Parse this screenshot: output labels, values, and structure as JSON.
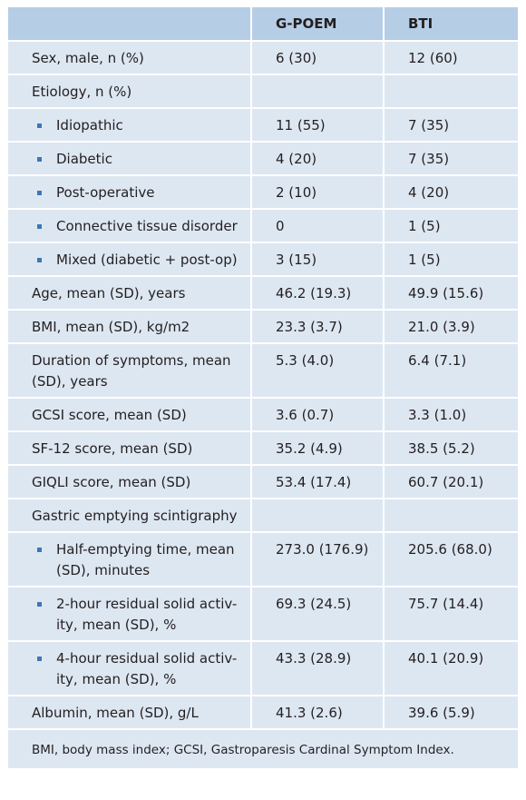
{
  "header": {
    "col1": "",
    "col2": "G-POEM",
    "col3": "BTI"
  },
  "rows": [
    {
      "label": "Sex, male, n (%)",
      "g": "6 (30)",
      "b": "12 (60)",
      "sub": false
    },
    {
      "label": "Etiology, n (%)",
      "g": "",
      "b": "",
      "sub": false
    },
    {
      "label": "Idiopathic",
      "g": "11 (55)",
      "b": "7 (35)",
      "sub": true
    },
    {
      "label": "Diabetic",
      "g": "4 (20)",
      "b": "7 (35)",
      "sub": true
    },
    {
      "label": "Post-operative",
      "g": "2 (10)",
      "b": "4 (20)",
      "sub": true
    },
    {
      "label": "Connective tissue disorder",
      "g": "0",
      "b": "1 (5)",
      "sub": true
    },
    {
      "label": "Mixed (diabetic + post-op)",
      "g": "3 (15)",
      "b": "1 (5)",
      "sub": true
    },
    {
      "label": "Age, mean (SD), years",
      "g": "46.2 (19.3)",
      "b": "49.9 (15.6)",
      "sub": false
    },
    {
      "label": "BMI, mean (SD), kg/m2",
      "g": "23.3 (3.7)",
      "b": "21.0 (3.9)",
      "sub": false
    },
    {
      "label": "Duration of symptoms, mean (SD), years",
      "g": "5.3 (4.0)",
      "b": "6.4 (7.1)",
      "sub": false
    },
    {
      "label": "GCSI score, mean (SD)",
      "g": "3.6 (0.7)",
      "b": "3.3 (1.0)",
      "sub": false
    },
    {
      "label": "SF-12 score, mean (SD)",
      "g": "35.2 (4.9)",
      "b": "38.5 (5.2)",
      "sub": false
    },
    {
      "label": "GIQLI score, mean (SD)",
      "g": "53.4 (17.4)",
      "b": "60.7 (20.1)",
      "sub": false
    },
    {
      "label": "Gastric emptying scintigraphy",
      "g": "",
      "b": "",
      "sub": false
    },
    {
      "label": "Half-emptying time, mean (SD), minutes",
      "g": "273.0 (176.9)",
      "b": "205.6 (68.0)",
      "sub": true
    },
    {
      "label": "2-hour residual solid activ-ity, mean (SD), %",
      "g": "69.3 (24.5)",
      "b": "75.7 (14.4)",
      "sub": true
    },
    {
      "label": "4-hour residual solid activ-ity, mean (SD), %",
      "g": "43.3 (28.9)",
      "b": "40.1 (20.9)",
      "sub": true
    },
    {
      "label": "Albumin, mean (SD), g/L",
      "g": "41.3 (2.6)",
      "b": "39.6 (5.9)",
      "sub": false
    }
  ],
  "footnote": "BMI, body mass index; GCSI, Gastroparesis Cardinal Symptom Index.",
  "colors": {
    "header_bg": "#b6cde6",
    "row_bg": "#dde7f2",
    "bullet": "#3b78b4"
  }
}
